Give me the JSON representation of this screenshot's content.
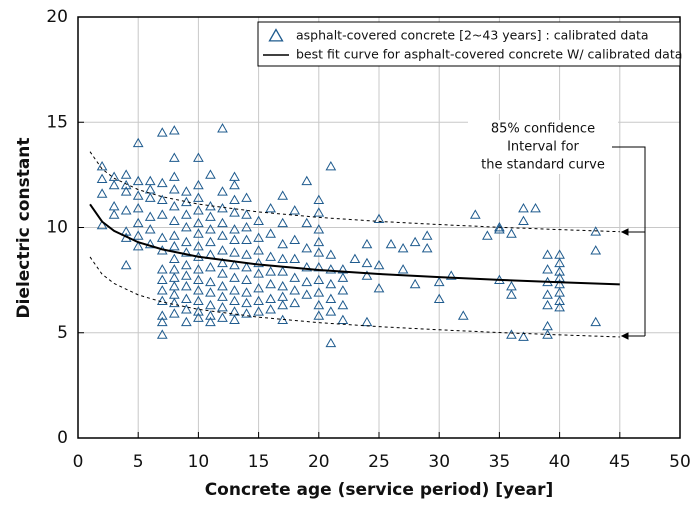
{
  "chart_data": {
    "type": "scatter",
    "xlabel": "Concrete  age (service period) [year]",
    "ylabel": "Dielectric constant",
    "xlim": [
      0,
      50
    ],
    "xticks": [
      0,
      5,
      10,
      15,
      20,
      25,
      30,
      35,
      40,
      45,
      50
    ],
    "ylim": [
      0,
      20
    ],
    "yticks": [
      0,
      5,
      10,
      15,
      20
    ],
    "grid": true,
    "legend": "upper right",
    "annotation": [
      "85% confidence",
      "Interval for",
      "the standard curve"
    ],
    "series": [
      {
        "name": "asphalt-covered concrete [2~43 years] : calibrated data",
        "type": "scatter",
        "color": "#1f5b8e",
        "x": [
          2,
          2,
          2,
          2,
          3,
          3,
          3,
          3,
          4,
          4,
          4,
          4,
          4,
          4,
          4,
          5,
          5,
          5,
          5,
          5,
          5,
          5,
          6,
          6,
          6,
          6,
          6,
          6,
          7,
          7,
          7,
          7,
          7,
          7,
          7,
          7,
          7,
          7,
          7,
          7,
          7,
          8,
          8,
          8,
          8,
          8,
          8,
          8,
          8,
          8,
          8,
          8,
          8,
          8,
          8,
          8,
          9,
          9,
          9,
          9,
          9,
          9,
          9,
          9,
          9,
          9,
          9,
          9,
          10,
          10,
          10,
          10,
          10,
          10,
          10,
          10,
          10,
          10,
          10,
          10,
          10,
          10,
          11,
          11,
          11,
          11,
          11,
          11,
          11,
          11,
          11,
          11,
          11,
          11,
          12,
          12,
          12,
          12,
          12,
          12,
          12,
          12,
          12,
          12,
          12,
          12,
          13,
          13,
          13,
          13,
          13,
          13,
          13,
          13,
          13,
          13,
          13,
          13,
          13,
          14,
          14,
          14,
          14,
          14,
          14,
          14,
          14,
          14,
          14,
          15,
          15,
          15,
          15,
          15,
          15,
          15,
          15,
          16,
          16,
          16,
          16,
          16,
          16,
          16,
          17,
          17,
          17,
          17,
          17,
          17,
          17,
          17,
          17,
          18,
          18,
          18,
          18,
          18,
          18,
          19,
          19,
          19,
          19,
          19,
          19,
          20,
          20,
          20,
          20,
          20,
          20,
          20,
          20,
          20,
          20,
          21,
          21,
          21,
          21,
          21,
          21,
          21,
          22,
          22,
          22,
          22,
          22,
          23,
          24,
          24,
          24,
          24,
          25,
          25,
          25,
          26,
          27,
          27,
          28,
          28,
          29,
          29,
          30,
          30,
          31,
          32,
          33,
          34,
          35,
          35,
          35,
          36,
          36,
          36,
          36,
          37,
          37,
          37,
          38,
          39,
          39,
          39,
          39,
          39,
          39,
          39,
          40,
          40,
          40,
          40,
          40,
          40,
          40,
          40,
          43,
          43,
          43
        ],
        "values": [
          12.9,
          12.3,
          11.6,
          10.1,
          12.4,
          12.0,
          11.0,
          10.6,
          12.5,
          12.0,
          11.7,
          10.8,
          9.8,
          9.5,
          8.2,
          14.0,
          12.2,
          11.5,
          10.9,
          10.2,
          9.6,
          9.1,
          12.2,
          11.8,
          11.4,
          10.5,
          9.9,
          9.2,
          14.5,
          12.1,
          11.3,
          10.6,
          9.5,
          8.9,
          8.0,
          7.5,
          7.0,
          6.5,
          5.8,
          5.5,
          4.9,
          14.6,
          13.3,
          12.4,
          11.8,
          11.0,
          10.3,
          9.6,
          9.1,
          8.5,
          8.0,
          7.6,
          7.2,
          6.8,
          6.4,
          5.9,
          11.7,
          11.2,
          10.6,
          10.0,
          9.3,
          8.8,
          8.2,
          7.7,
          7.2,
          6.6,
          6.1,
          5.5,
          13.3,
          12.0,
          11.4,
          10.8,
          10.2,
          9.7,
          9.1,
          8.6,
          8.0,
          7.5,
          7.0,
          6.5,
          6.0,
          5.7,
          12.5,
          11.0,
          10.5,
          9.9,
          9.3,
          8.7,
          8.1,
          7.4,
          6.9,
          6.3,
          5.8,
          5.5,
          14.7,
          11.7,
          10.9,
          10.2,
          9.6,
          8.9,
          8.3,
          7.8,
          7.2,
          6.7,
          6.2,
          5.7,
          12.4,
          12.0,
          11.3,
          10.7,
          9.9,
          9.4,
          8.8,
          8.2,
          7.6,
          7.0,
          6.5,
          6.0,
          5.6,
          11.4,
          10.6,
          10.0,
          9.4,
          8.7,
          8.1,
          7.5,
          6.9,
          6.4,
          5.9,
          10.3,
          9.5,
          8.9,
          8.3,
          7.8,
          7.1,
          6.5,
          6.0,
          10.9,
          9.7,
          8.6,
          7.9,
          7.3,
          6.6,
          6.1,
          11.5,
          10.2,
          9.2,
          8.5,
          7.9,
          7.2,
          6.7,
          6.3,
          5.6,
          10.8,
          9.4,
          8.5,
          7.6,
          7.0,
          6.4,
          12.2,
          10.2,
          9.0,
          8.1,
          7.4,
          6.8,
          11.3,
          10.7,
          9.9,
          9.3,
          8.8,
          8.1,
          7.5,
          6.9,
          6.3,
          5.8,
          12.9,
          8.7,
          8.0,
          7.3,
          6.6,
          6.0,
          4.5,
          8.0,
          7.6,
          7.0,
          6.3,
          5.6,
          8.5,
          9.2,
          8.3,
          7.7,
          5.5,
          10.4,
          8.2,
          7.1,
          9.2,
          9.0,
          8.0,
          9.3,
          7.3,
          9.6,
          9.0,
          7.4,
          6.6,
          7.7,
          5.8,
          10.6,
          9.6,
          10.0,
          9.9,
          7.5,
          9.7,
          7.2,
          6.8,
          4.9,
          10.9,
          10.3,
          4.8,
          10.9,
          8.7,
          8.0,
          7.4,
          6.8,
          6.3,
          5.3,
          4.9,
          8.7,
          8.3,
          7.9,
          7.6,
          7.3,
          6.9,
          6.5,
          6.2,
          9.8,
          8.9,
          5.5
        ]
      },
      {
        "name": "best fit curve for asphalt-covered concrete W/ calibrated data",
        "type": "line",
        "color": "#000000",
        "linestyle": "solid",
        "x": [
          1,
          2,
          3,
          5,
          7,
          10,
          15,
          20,
          25,
          30,
          35,
          40,
          45
        ],
        "values": [
          11.1,
          10.28,
          9.84,
          9.3,
          8.96,
          8.61,
          8.24,
          7.98,
          7.79,
          7.64,
          7.51,
          7.4,
          7.3
        ]
      },
      {
        "type": "line",
        "color": "#000000",
        "linestyle": "dashed",
        "x": [
          1,
          2,
          3,
          5,
          7,
          10,
          15,
          20,
          25,
          30,
          35,
          40,
          45
        ],
        "values": [
          13.6,
          12.78,
          12.34,
          11.8,
          11.46,
          11.11,
          10.74,
          10.48,
          10.29,
          10.14,
          10.01,
          9.9,
          9.8
        ]
      },
      {
        "type": "line",
        "color": "#000000",
        "linestyle": "dashed",
        "x": [
          1,
          2,
          3,
          5,
          7,
          10,
          15,
          20,
          25,
          30,
          35,
          40,
          45
        ],
        "values": [
          8.6,
          7.78,
          7.34,
          6.8,
          6.46,
          6.11,
          5.74,
          5.48,
          5.29,
          5.14,
          5.01,
          4.9,
          4.8
        ]
      }
    ]
  }
}
